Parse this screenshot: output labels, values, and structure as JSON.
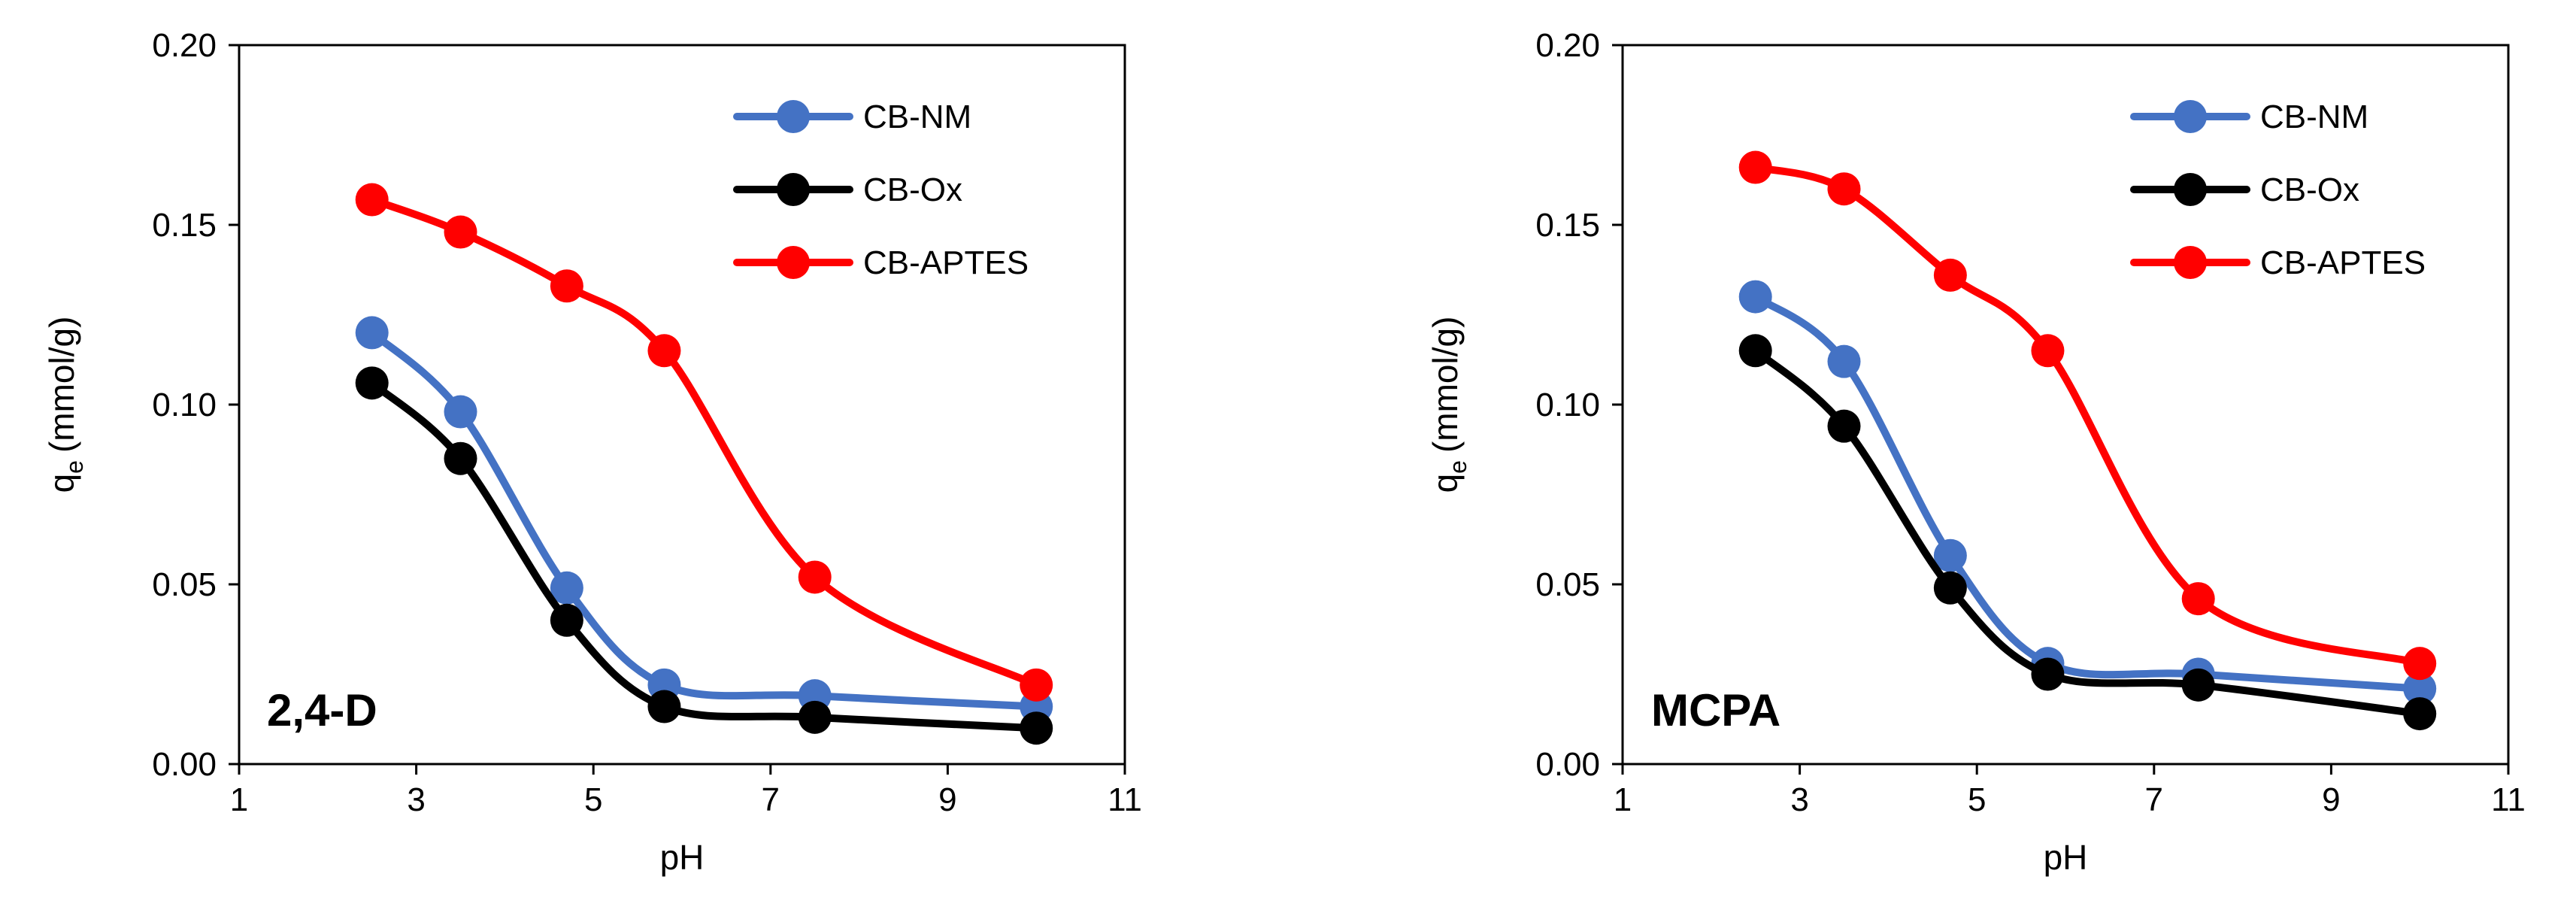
{
  "chart_data": [
    {
      "type": "line",
      "panel_label": "2,4-D",
      "xlabel": "pH",
      "ylabel": "q",
      "ylabel_subscript": "e",
      "ylabel_unit": "(mmol/g)",
      "xlim": [
        1,
        11
      ],
      "ylim": [
        0,
        0.2
      ],
      "xticks": [
        "1",
        "3",
        "5",
        "7",
        "9",
        "11"
      ],
      "yticks": [
        "0.00",
        "0.05",
        "0.10",
        "0.15",
        "0.20"
      ],
      "grid": false,
      "legend_position": "top-right",
      "x": [
        2.5,
        3.5,
        4.7,
        5.8,
        7.5,
        10
      ],
      "series": [
        {
          "name": "CB-NM",
          "color": "#4472C4",
          "values": [
            0.12,
            0.098,
            0.049,
            0.022,
            0.019,
            0.016
          ]
        },
        {
          "name": "CB-Ox",
          "color": "#000000",
          "values": [
            0.106,
            0.085,
            0.04,
            0.016,
            0.013,
            0.01
          ]
        },
        {
          "name": "CB-APTES",
          "color": "#FF0000",
          "values": [
            0.157,
            0.148,
            0.133,
            0.115,
            0.052,
            0.022
          ]
        }
      ]
    },
    {
      "type": "line",
      "panel_label": "MCPA",
      "xlabel": "pH",
      "ylabel": "q",
      "ylabel_subscript": "e",
      "ylabel_unit": "(mmol/g)",
      "xlim": [
        1,
        11
      ],
      "ylim": [
        0,
        0.2
      ],
      "xticks": [
        "1",
        "3",
        "5",
        "7",
        "9",
        "11"
      ],
      "yticks": [
        "0.00",
        "0.05",
        "0.10",
        "0.15",
        "0.20"
      ],
      "grid": false,
      "legend_position": "top-right",
      "x": [
        2.5,
        3.5,
        4.7,
        5.8,
        7.5,
        10
      ],
      "series": [
        {
          "name": "CB-NM",
          "color": "#4472C4",
          "values": [
            0.13,
            0.112,
            0.058,
            0.028,
            0.025,
            0.021
          ]
        },
        {
          "name": "CB-Ox",
          "color": "#000000",
          "values": [
            0.115,
            0.094,
            0.049,
            0.025,
            0.022,
            0.014
          ]
        },
        {
          "name": "CB-APTES",
          "color": "#FF0000",
          "values": [
            0.166,
            0.16,
            0.136,
            0.115,
            0.046,
            0.028
          ]
        }
      ]
    }
  ]
}
